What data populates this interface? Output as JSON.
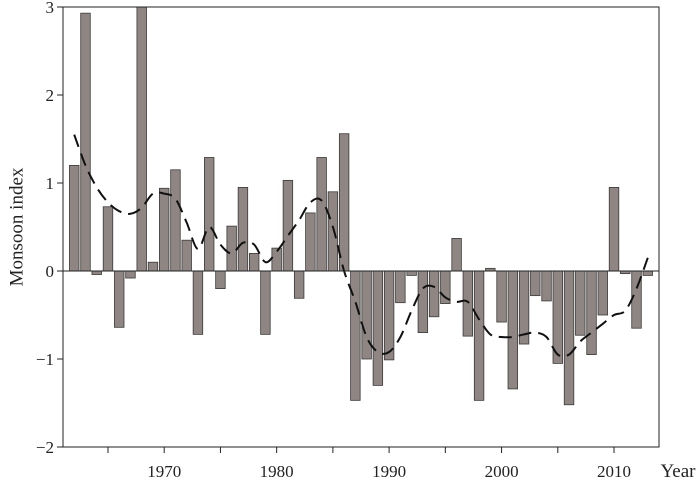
{
  "chart_data": {
    "type": "bar",
    "ylabel": "Monsoon index",
    "xlabel": "Year",
    "xlim": [
      1961,
      2014
    ],
    "ylim": [
      -2,
      3
    ],
    "x_ticks": [
      1970,
      1980,
      1990,
      2000,
      2010
    ],
    "y_ticks": [
      -2,
      -1,
      0,
      1,
      2,
      3
    ],
    "x_tick_labels": [
      "1970",
      "1980",
      "1990",
      "2000",
      "2010"
    ],
    "y_tick_labels": [
      "−2",
      "−1",
      "0",
      "1",
      "2",
      "3"
    ],
    "series": [
      {
        "kind": "bar",
        "x": [
          1962,
          1963,
          1964,
          1965,
          1966,
          1967,
          1968,
          1969,
          1970,
          1971,
          1972,
          1973,
          1974,
          1975,
          1976,
          1977,
          1978,
          1979,
          1980,
          1981,
          1982,
          1983,
          1984,
          1985,
          1986,
          1987,
          1988,
          1989,
          1990,
          1991,
          1992,
          1993,
          1994,
          1995,
          1996,
          1997,
          1998,
          1999,
          2000,
          2001,
          2002,
          2003,
          2004,
          2005,
          2006,
          2007,
          2008,
          2009,
          2010,
          2011,
          2012,
          2013
        ],
        "values": [
          1.2,
          2.93,
          -0.04,
          0.73,
          -0.64,
          -0.08,
          3.0,
          0.1,
          0.94,
          1.15,
          0.35,
          -0.72,
          1.29,
          -0.2,
          0.51,
          0.95,
          0.2,
          -0.72,
          0.26,
          1.03,
          -0.31,
          0.66,
          1.29,
          0.9,
          1.56,
          -1.47,
          -1.0,
          -1.3,
          -1.01,
          -0.36,
          -0.05,
          -0.7,
          -0.52,
          -0.37,
          0.37,
          -0.74,
          -1.47,
          0.03,
          -0.58,
          -1.34,
          -0.83,
          -0.28,
          -0.34,
          -1.05,
          -1.52,
          -0.73,
          -0.95,
          -0.5,
          0.95,
          -0.03,
          -0.65,
          -0.05
        ]
      },
      {
        "kind": "line",
        "style": "dashed",
        "x": [
          1962,
          1963,
          1964,
          1965,
          1966,
          1967,
          1968,
          1969,
          1970,
          1971,
          1972,
          1973,
          1974,
          1975,
          1976,
          1977,
          1978,
          1979,
          1980,
          1981,
          1982,
          1983,
          1984,
          1985,
          1986,
          1987,
          1988,
          1989,
          1990,
          1991,
          1992,
          1993,
          1994,
          1995,
          1996,
          1997,
          1998,
          1999,
          2000,
          2001,
          2002,
          2003,
          2004,
          2005,
          2006,
          2007,
          2008,
          2009,
          2010,
          2011,
          2012,
          2013
        ],
        "values": [
          1.55,
          1.2,
          0.95,
          0.78,
          0.68,
          0.65,
          0.72,
          0.88,
          0.88,
          0.82,
          0.55,
          0.25,
          0.5,
          0.3,
          0.2,
          0.32,
          0.3,
          0.1,
          0.22,
          0.4,
          0.58,
          0.78,
          0.8,
          0.5,
          0.0,
          -0.35,
          -0.75,
          -0.92,
          -0.92,
          -0.75,
          -0.45,
          -0.2,
          -0.18,
          -0.3,
          -0.35,
          -0.35,
          -0.55,
          -0.72,
          -0.75,
          -0.75,
          -0.72,
          -0.7,
          -0.75,
          -0.95,
          -0.95,
          -0.8,
          -0.7,
          -0.6,
          -0.5,
          -0.45,
          -0.2,
          0.15
        ]
      }
    ]
  }
}
